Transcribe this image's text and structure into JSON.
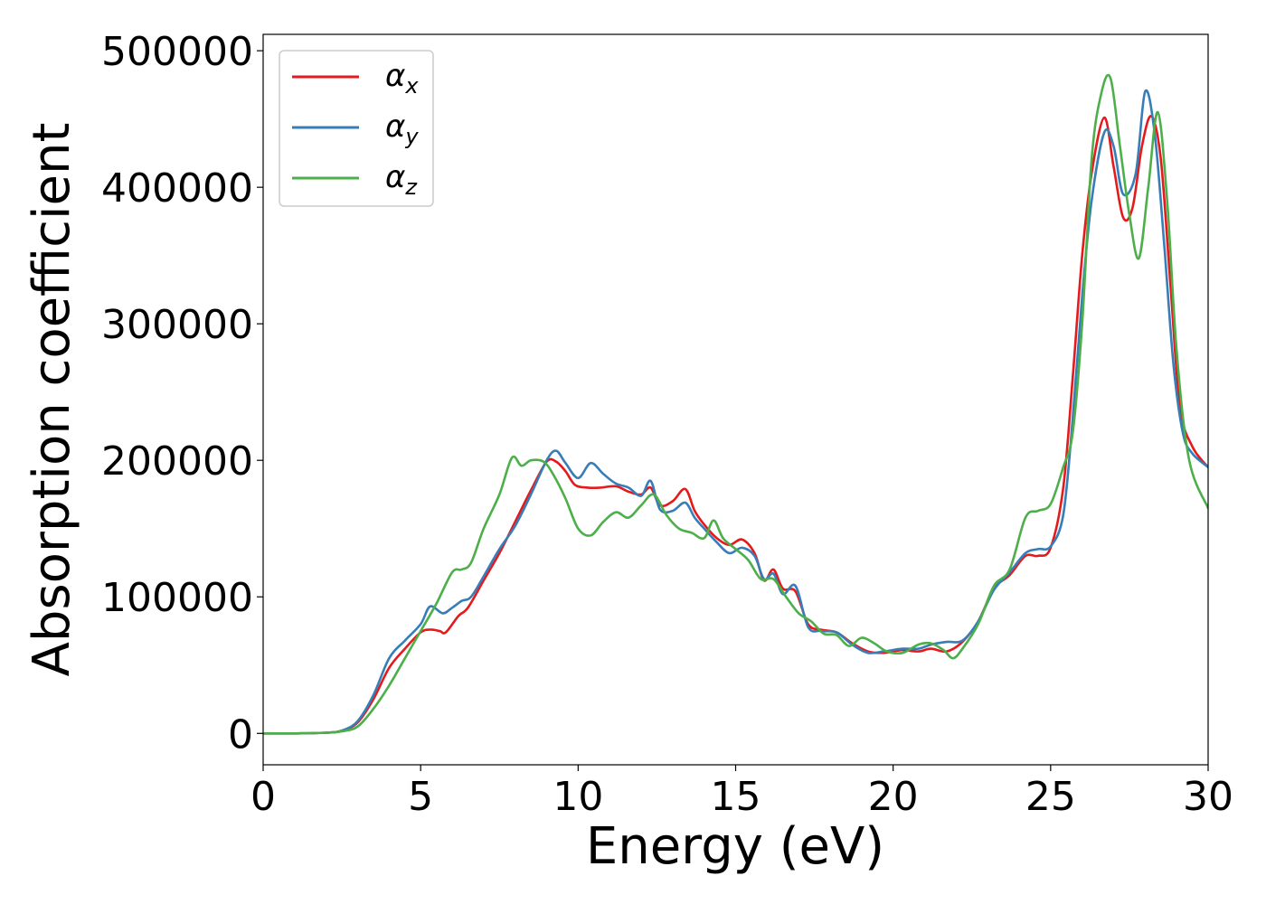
{
  "chart_data": {
    "type": "line",
    "xlabel": "Energy (eV)",
    "ylabel": "Absorption coefficient",
    "xlim": [
      0,
      30
    ],
    "ylim": [
      -23000,
      512000
    ],
    "xticks": [
      0,
      5,
      10,
      15,
      20,
      25,
      30
    ],
    "xtick_labels": [
      "0",
      "5",
      "10",
      "15",
      "20",
      "25",
      "30"
    ],
    "yticks": [
      0,
      100000,
      200000,
      300000,
      400000,
      500000
    ],
    "ytick_labels": [
      "0",
      "100000",
      "200000",
      "300000",
      "400000",
      "500000"
    ],
    "grid": false,
    "legend_position": "top-left",
    "series": [
      {
        "name": "α",
        "subscript": "x",
        "color": "#e41a1c",
        "x": [
          0,
          1,
          2,
          2.5,
          3,
          3.5,
          4,
          4.5,
          5,
          5.3,
          5.6,
          5.8,
          6.2,
          6.5,
          7,
          7.5,
          8,
          8.5,
          9,
          9.3,
          9.6,
          9.9,
          10.3,
          10.7,
          11.2,
          11.6,
          12,
          12.3,
          12.6,
          13,
          13.4,
          13.7,
          14,
          14.4,
          14.8,
          15.2,
          15.6,
          15.9,
          16.2,
          16.5,
          16.9,
          17.3,
          17.7,
          18.2,
          18.7,
          19.2,
          19.7,
          20.3,
          20.8,
          21.2,
          21.7,
          22.2,
          22.7,
          23.2,
          23.7,
          24.2,
          24.6,
          25,
          25.4,
          25.7,
          26,
          26.3,
          26.7,
          27,
          27.3,
          27.6,
          27.9,
          28.2,
          28.5,
          28.8,
          29.1,
          29.5,
          30
        ],
        "y": [
          0,
          0,
          500,
          2000,
          8000,
          25000,
          48000,
          62000,
          74000,
          76000,
          75000,
          74000,
          86000,
          92000,
          112000,
          132000,
          155000,
          178000,
          199000,
          199000,
          192000,
          182000,
          180000,
          180000,
          181000,
          177000,
          175000,
          180000,
          167000,
          170000,
          179000,
          163000,
          153000,
          143000,
          138000,
          142000,
          132000,
          112000,
          120000,
          106000,
          104000,
          80000,
          76000,
          74000,
          66000,
          60000,
          59000,
          61000,
          60000,
          62000,
          60000,
          67000,
          82000,
          106000,
          116000,
          130000,
          130000,
          136000,
          180000,
          260000,
          350000,
          410000,
          451000,
          415000,
          378000,
          385000,
          430000,
          452000,
          420000,
          330000,
          240000,
          210000,
          195000
        ]
      },
      {
        "name": "α",
        "subscript": "y",
        "color": "#377eb8",
        "x": [
          0,
          1,
          2,
          2.5,
          3,
          3.5,
          4,
          4.5,
          5,
          5.3,
          5.7,
          6,
          6.3,
          6.6,
          7,
          7.5,
          8,
          8.5,
          9,
          9.3,
          9.6,
          10,
          10.4,
          10.8,
          11.2,
          11.6,
          12,
          12.3,
          12.6,
          13,
          13.4,
          13.7,
          14,
          14.4,
          14.8,
          15.2,
          15.6,
          15.9,
          16.2,
          16.5,
          16.9,
          17.3,
          17.7,
          18.2,
          18.7,
          19.2,
          19.7,
          20.3,
          20.8,
          21.2,
          21.7,
          22.2,
          22.7,
          23.2,
          23.7,
          24.2,
          24.6,
          25,
          25.4,
          25.7,
          26,
          26.3,
          26.7,
          27,
          27.3,
          27.7,
          28,
          28.3,
          28.6,
          28.9,
          29.2,
          29.5,
          30
        ],
        "y": [
          0,
          0,
          500,
          2000,
          9000,
          28000,
          55000,
          68000,
          80000,
          93000,
          88000,
          92000,
          97000,
          100000,
          115000,
          135000,
          152000,
          175000,
          200000,
          207000,
          198000,
          187000,
          198000,
          190000,
          183000,
          180000,
          174000,
          185000,
          164000,
          163000,
          169000,
          158000,
          150000,
          140000,
          132000,
          136000,
          130000,
          113000,
          117000,
          102000,
          108000,
          78000,
          75000,
          74000,
          65000,
          59000,
          60000,
          62000,
          62000,
          65000,
          67000,
          68000,
          82000,
          105000,
          118000,
          132000,
          135000,
          137000,
          160000,
          230000,
          320000,
          390000,
          440000,
          430000,
          395000,
          410000,
          470000,
          440000,
          360000,
          270000,
          220000,
          205000,
          195000
        ]
      },
      {
        "name": "α",
        "subscript": "z",
        "color": "#4daf4a",
        "x": [
          0,
          1,
          2,
          2.5,
          3,
          3.5,
          4,
          4.5,
          5,
          5.5,
          6,
          6.3,
          6.6,
          7,
          7.5,
          7.9,
          8.2,
          8.5,
          8.9,
          9.2,
          9.6,
          10,
          10.4,
          10.8,
          11.2,
          11.6,
          12,
          12.4,
          12.8,
          13.2,
          13.6,
          14,
          14.3,
          14.6,
          15,
          15.4,
          15.8,
          16.2,
          16.6,
          17,
          17.4,
          17.8,
          18.2,
          18.6,
          19,
          19.4,
          19.8,
          20.3,
          20.8,
          21.2,
          21.6,
          21.9,
          22.2,
          22.7,
          23.2,
          23.7,
          24.2,
          24.6,
          25,
          25.4,
          25.7,
          26,
          26.3,
          26.6,
          26.9,
          27.2,
          27.5,
          27.8,
          28.1,
          28.4,
          28.7,
          29,
          29.4,
          30
        ],
        "y": [
          0,
          0,
          500,
          1500,
          5000,
          18000,
          35000,
          55000,
          75000,
          95000,
          118000,
          120000,
          125000,
          150000,
          175000,
          202000,
          196000,
          200000,
          199000,
          190000,
          172000,
          150000,
          145000,
          155000,
          162000,
          158000,
          167000,
          175000,
          160000,
          150000,
          147000,
          143000,
          156000,
          143000,
          135000,
          127000,
          113000,
          113000,
          100000,
          88000,
          82000,
          73000,
          72000,
          64000,
          70000,
          66000,
          60000,
          59000,
          65000,
          66000,
          61000,
          55000,
          62000,
          80000,
          108000,
          120000,
          158000,
          163000,
          168000,
          195000,
          220000,
          300000,
          420000,
          468000,
          480000,
          430000,
          380000,
          348000,
          400000,
          455000,
          390000,
          280000,
          200000,
          165000
        ]
      }
    ]
  }
}
